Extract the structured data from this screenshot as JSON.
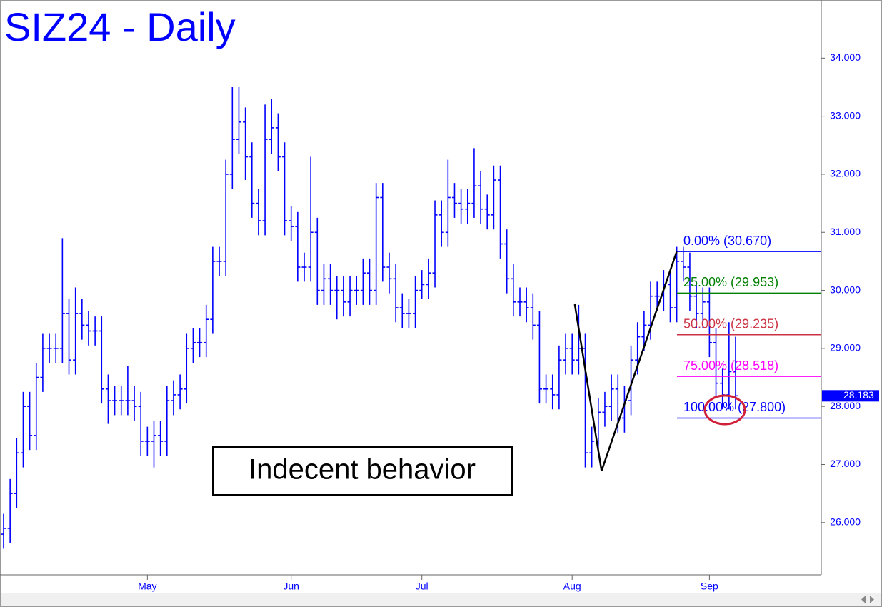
{
  "chart_data": {
    "type": "ohlc",
    "title": "SIZ24 - Daily",
    "color": "#0000ff",
    "open": [
      25.8,
      25.9,
      26.5,
      27.2,
      28.0,
      27.5,
      28.5,
      29.0,
      29.0,
      29.0,
      29.6,
      28.8,
      29.6,
      29.4,
      29.3,
      29.3,
      28.3,
      28.1,
      28.1,
      28.1,
      28.1,
      28.0,
      27.4,
      27.4,
      27.5,
      27.4,
      28.1,
      28.2,
      28.3,
      29.0,
      29.1,
      29.1,
      29.5,
      30.5,
      30.5,
      32.0,
      32.6,
      32.9,
      32.3,
      31.5,
      31.2,
      32.6,
      32.8,
      32.3,
      31.2,
      31.1,
      30.4,
      30.4,
      31.0,
      30.0,
      30.2,
      30.0,
      30.0,
      29.8,
      30.0,
      30.0,
      30.3,
      30.0,
      31.6,
      30.4,
      30.2,
      29.7,
      29.6,
      29.6,
      30.0,
      30.1,
      30.3,
      31.3,
      31.0,
      31.6,
      31.5,
      31.4,
      31.5,
      31.8,
      31.4,
      31.3,
      31.9,
      30.8,
      30.2,
      29.8,
      29.8,
      29.7,
      29.4,
      28.3,
      28.3,
      28.2,
      28.8,
      29.0,
      28.8,
      29.0,
      27.2,
      27.4,
      27.9,
      28.0,
      28.3,
      27.8,
      28.1,
      28.8,
      29.2,
      29.4,
      29.9,
      29.9,
      30.1,
      29.7,
      30.5,
      30.4,
      29.9,
      29.6,
      29.8,
      29.1,
      28.4,
      28.2,
      28.6
    ],
    "high": [
      26.15,
      26.75,
      27.45,
      28.25,
      28.25,
      28.75,
      29.25,
      29.25,
      29.25,
      30.9,
      29.85,
      30.05,
      29.85,
      29.65,
      29.55,
      29.55,
      28.55,
      28.35,
      28.35,
      28.7,
      28.35,
      28.25,
      27.65,
      27.75,
      27.75,
      28.35,
      28.45,
      28.55,
      29.25,
      29.35,
      29.35,
      29.75,
      30.75,
      30.75,
      32.25,
      33.5,
      33.5,
      33.15,
      32.55,
      31.75,
      33.2,
      33.3,
      33.05,
      32.55,
      31.45,
      31.35,
      30.65,
      32.3,
      31.25,
      30.45,
      30.45,
      30.25,
      30.25,
      30.25,
      30.25,
      30.55,
      30.55,
      31.85,
      31.85,
      30.65,
      30.45,
      29.95,
      29.85,
      30.25,
      30.35,
      30.55,
      31.55,
      31.55,
      32.25,
      31.85,
      31.75,
      31.75,
      32.45,
      32.05,
      31.65,
      32.15,
      32.15,
      31.05,
      30.45,
      30.05,
      30.05,
      29.95,
      29.65,
      28.55,
      28.55,
      29.05,
      29.25,
      29.25,
      29.75,
      29.25,
      27.65,
      28.15,
      28.25,
      28.55,
      28.55,
      28.35,
      29.05,
      29.45,
      29.65,
      30.15,
      30.15,
      30.35,
      30.35,
      30.75,
      30.75,
      30.65,
      30.15,
      30.05,
      30.05,
      29.35,
      28.65,
      29.45,
      29.2
    ],
    "low": [
      25.55,
      25.65,
      26.25,
      26.95,
      27.25,
      27.25,
      28.25,
      28.75,
      28.75,
      28.75,
      28.55,
      28.55,
      29.15,
      29.05,
      29.05,
      28.05,
      27.7,
      27.85,
      27.85,
      27.85,
      27.75,
      27.15,
      27.15,
      26.95,
      27.15,
      27.15,
      27.85,
      27.95,
      28.05,
      28.75,
      28.85,
      28.85,
      29.25,
      30.25,
      30.25,
      31.75,
      32.35,
      31.9,
      31.25,
      30.95,
      30.95,
      32.35,
      32.05,
      30.95,
      30.85,
      30.15,
      30.15,
      30.15,
      29.75,
      29.75,
      29.75,
      29.5,
      29.55,
      29.55,
      29.75,
      29.75,
      29.75,
      29.75,
      30.15,
      29.95,
      29.45,
      29.35,
      29.35,
      29.35,
      29.85,
      29.85,
      30.05,
      30.75,
      30.75,
      31.25,
      31.15,
      31.15,
      31.25,
      31.15,
      31.05,
      31.05,
      30.55,
      29.95,
      29.55,
      29.55,
      29.45,
      29.15,
      28.05,
      28.05,
      27.95,
      27.95,
      28.55,
      28.55,
      28.55,
      26.95,
      26.95,
      27.15,
      27.65,
      27.75,
      27.55,
      27.55,
      27.85,
      28.55,
      28.95,
      29.15,
      29.65,
      29.65,
      29.45,
      29.45,
      30.15,
      29.65,
      29.35,
      29.35,
      28.85,
      28.15,
      27.95,
      27.95,
      27.95
    ],
    "close": [
      25.9,
      26.5,
      27.2,
      28.0,
      27.5,
      28.5,
      29.0,
      29.0,
      29.0,
      29.6,
      28.8,
      29.6,
      29.4,
      29.3,
      29.3,
      28.3,
      28.1,
      28.1,
      28.1,
      28.1,
      28.0,
      27.4,
      27.4,
      27.5,
      27.4,
      28.1,
      28.2,
      28.3,
      29.0,
      29.1,
      29.1,
      29.5,
      30.5,
      30.5,
      32.0,
      32.6,
      32.9,
      32.3,
      31.5,
      31.2,
      32.6,
      32.8,
      32.3,
      31.2,
      31.1,
      30.4,
      30.4,
      31.0,
      30.0,
      30.2,
      30.0,
      30.0,
      29.8,
      30.0,
      30.0,
      30.3,
      30.0,
      31.6,
      30.4,
      30.2,
      29.7,
      29.6,
      29.6,
      30.0,
      30.1,
      30.3,
      31.3,
      31.0,
      31.6,
      31.5,
      31.4,
      31.5,
      31.8,
      31.4,
      31.3,
      31.9,
      30.8,
      30.2,
      29.8,
      29.8,
      29.7,
      29.4,
      28.3,
      28.3,
      28.2,
      28.8,
      29.0,
      28.8,
      29.0,
      27.2,
      27.4,
      27.9,
      28.0,
      28.3,
      27.8,
      28.1,
      28.8,
      29.2,
      29.4,
      29.9,
      29.9,
      30.1,
      29.7,
      30.5,
      30.4,
      29.9,
      29.6,
      29.8,
      29.1,
      28.4,
      28.2,
      28.6,
      28.183
    ],
    "xticks": [
      {
        "value": 22,
        "label": "May"
      },
      {
        "value": 44,
        "label": "Jun"
      },
      {
        "value": 64,
        "label": "Jul"
      },
      {
        "value": 87,
        "label": "Aug"
      },
      {
        "value": 108,
        "label": "Sep"
      }
    ],
    "ylim": [
      25.1,
      35.0
    ],
    "yticks": [
      {
        "value": 26,
        "label": "26.000"
      },
      {
        "value": 27,
        "label": "27.000"
      },
      {
        "value": 28,
        "label": "28.000"
      },
      {
        "value": 29,
        "label": "29.000"
      },
      {
        "value": 30,
        "label": "30.000"
      },
      {
        "value": 31,
        "label": "31.000"
      },
      {
        "value": 32,
        "label": "32.000"
      },
      {
        "value": 33,
        "label": "33.000"
      },
      {
        "value": 34,
        "label": "34.000"
      }
    ],
    "last_price": 28.183,
    "fib_levels": [
      {
        "label": "0.00% (30.670)",
        "value": 30.67,
        "color": "#0000ff"
      },
      {
        "label": "25.00% (29.953)",
        "value": 29.953,
        "color": "#008000"
      },
      {
        "label": "50.00% (29.235)",
        "value": 29.235,
        "color": "#cc3344"
      },
      {
        "label": "75.00% (28.518)",
        "value": 28.518,
        "color": "#ff00ff"
      },
      {
        "label": "100.00% (27.800)",
        "value": 27.8,
        "color": "#0000ff"
      }
    ],
    "swing": {
      "x": [
        87.4,
        91.5,
        103
      ],
      "values": [
        29.76,
        26.89,
        30.67
      ]
    },
    "annotation": "Indecent behavior"
  }
}
